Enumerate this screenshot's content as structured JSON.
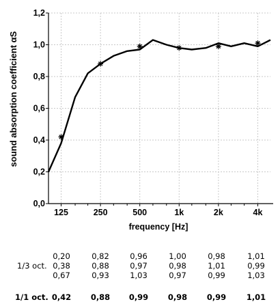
{
  "chart_data": {
    "type": "line",
    "ylabel": "sound absorption coefficient αS",
    "xlabel": "frequency [Hz]",
    "ylim": [
      0,
      1.2
    ],
    "yticks": [
      "0,0",
      "0,2",
      "0,4",
      "0,6",
      "0,8",
      "1,0",
      "1,2"
    ],
    "xticks": [
      "125",
      "250",
      "500",
      "1k",
      "2k",
      "4k"
    ],
    "grid": true,
    "series": [
      {
        "kind": "line",
        "x": [
          100,
          125,
          160,
          200,
          250,
          315,
          400,
          500,
          630,
          800,
          1000,
          1250,
          1600,
          2000,
          2500,
          3150,
          4000,
          5000
        ],
        "y": [
          0.2,
          0.38,
          0.67,
          0.82,
          0.88,
          0.93,
          0.96,
          0.97,
          1.03,
          1.0,
          0.98,
          0.97,
          0.98,
          1.01,
          0.99,
          1.01,
          0.99,
          1.03
        ]
      },
      {
        "kind": "markers",
        "marker": "asterisk",
        "x": [
          125,
          250,
          500,
          1000,
          2000,
          4000
        ],
        "y": [
          0.42,
          0.88,
          0.99,
          0.98,
          0.99,
          1.01
        ]
      }
    ]
  },
  "table": {
    "third_octave_label": "1/3 oct.",
    "octave_label": "1/1 oct.",
    "third_octave_rows": [
      [
        "0,20",
        "0,82",
        "0,96",
        "1,00",
        "0,98",
        "1,01"
      ],
      [
        "0,38",
        "0,88",
        "0,97",
        "0,98",
        "1,01",
        "0,99"
      ],
      [
        "0,67",
        "0,93",
        "1,03",
        "0,97",
        "0,99",
        "1,03"
      ]
    ],
    "octave_values": [
      "0,42",
      "0,88",
      "0,99",
      "0,98",
      "0,99",
      "1,01"
    ]
  }
}
